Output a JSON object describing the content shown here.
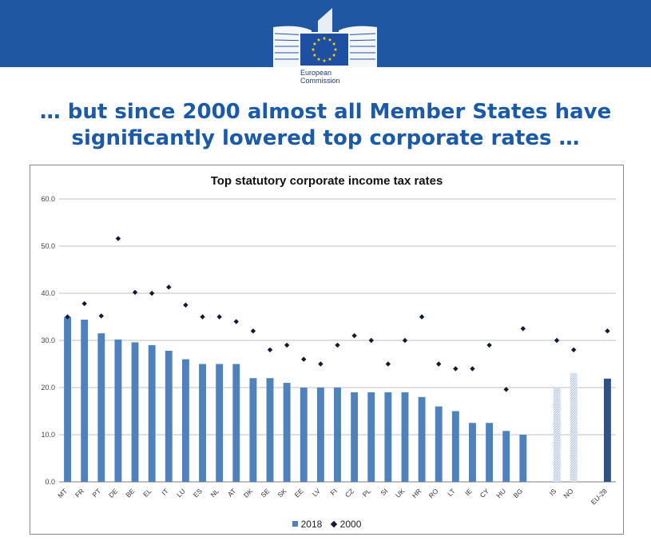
{
  "header": {
    "logo_text_line1": "European",
    "logo_text_line2": "Commission",
    "brand_color": "#1f57a2"
  },
  "headline": {
    "line1": "… but since 2000 almost all Member States have",
    "line2": "significantly lowered top corporate rates …"
  },
  "chart_data": {
    "type": "bar",
    "title": "Top statutory corporate income tax rates",
    "xlabel": "",
    "ylabel": "",
    "ylim": [
      0,
      60
    ],
    "yticks": [
      "0.0",
      "10.0",
      "20.0",
      "30.0",
      "40.0",
      "50.0",
      "60.0"
    ],
    "grid": true,
    "legend_position": "bottom",
    "colors": {
      "2018": "#4f81bd",
      "2018_non_eu": "#b9cde8",
      "eu_average": "#2f5286",
      "2000": "#0f1b33"
    },
    "groups": [
      [
        "MT",
        "FR",
        "PT",
        "DE",
        "BE",
        "EL",
        "IT",
        "LU",
        "ES",
        "NL",
        "AT",
        "DK",
        "SE",
        "SK",
        "EE",
        "LV",
        "FI",
        "CZ",
        "PL",
        "SI",
        "UK",
        "HR",
        "RO",
        "LT",
        "IE",
        "CY",
        "HU",
        "BG"
      ],
      [
        "IS",
        "NO"
      ],
      [
        "EU-28"
      ]
    ],
    "categories": [
      "MT",
      "FR",
      "PT",
      "DE",
      "BE",
      "EL",
      "IT",
      "LU",
      "ES",
      "NL",
      "AT",
      "DK",
      "SE",
      "SK",
      "EE",
      "LV",
      "FI",
      "CZ",
      "PL",
      "SI",
      "UK",
      "HR",
      "RO",
      "LT",
      "IE",
      "CY",
      "HU",
      "BG",
      "IS",
      "NO",
      "EU-28"
    ],
    "series": [
      {
        "name": "2018",
        "type": "bar",
        "values": [
          35.0,
          34.4,
          31.5,
          30.2,
          29.6,
          29.0,
          27.8,
          26.0,
          25.0,
          25.0,
          25.0,
          22.0,
          22.0,
          21.0,
          20.0,
          20.0,
          20.0,
          19.0,
          19.0,
          19.0,
          19.0,
          18.0,
          16.0,
          15.0,
          12.5,
          12.5,
          10.8,
          10.0,
          20.0,
          23.0,
          21.9
        ]
      },
      {
        "name": "2000",
        "type": "scatter",
        "marker": "diamond",
        "values": [
          35.0,
          37.8,
          35.2,
          51.6,
          40.2,
          40.0,
          41.3,
          37.5,
          35.0,
          35.0,
          34.0,
          32.0,
          28.0,
          29.0,
          26.0,
          25.0,
          29.0,
          31.0,
          30.0,
          25.0,
          30.0,
          35.0,
          25.0,
          24.0,
          24.0,
          29.0,
          19.6,
          32.5,
          30.0,
          28.0,
          32.0
        ]
      }
    ]
  }
}
